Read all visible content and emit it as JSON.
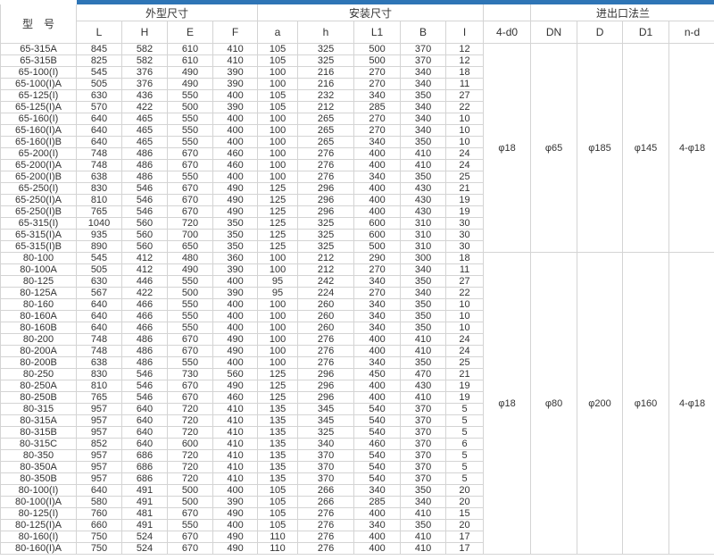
{
  "page": {
    "top_bar_color": "#2e75b6",
    "grid_color": "#d4d4d4"
  },
  "table": {
    "header": {
      "model_label": "型　号",
      "groups": [
        {
          "label": "外型尺寸",
          "span": 4
        },
        {
          "label": "安装尺寸",
          "span": 5
        },
        {
          "label": "",
          "span": 1
        },
        {
          "label": "进出口法兰",
          "span": 4
        }
      ],
      "columns": [
        "L",
        "H",
        "E",
        "F",
        "a",
        "h",
        "L1",
        "B",
        "I",
        "4-d0",
        "DN",
        "D",
        "D1",
        "n-d"
      ]
    },
    "groups": [
      {
        "flange": {
          "d0": "φ18",
          "DN": "φ65",
          "D": "φ185",
          "D1": "φ145",
          "nd": "4-φ18"
        },
        "rows": [
          {
            "model": "65-315A",
            "values": [
              845,
              582,
              610,
              410,
              105,
              325,
              500,
              370,
              12
            ]
          },
          {
            "model": "65-315B",
            "values": [
              825,
              582,
              610,
              410,
              105,
              325,
              500,
              370,
              12
            ]
          },
          {
            "model": "65-100(I)",
            "values": [
              545,
              376,
              490,
              390,
              100,
              216,
              270,
              340,
              18
            ]
          },
          {
            "model": "65-100(I)A",
            "values": [
              505,
              376,
              490,
              390,
              100,
              216,
              270,
              340,
              11
            ]
          },
          {
            "model": "65-125(I)",
            "values": [
              630,
              436,
              550,
              400,
              105,
              232,
              340,
              350,
              27
            ]
          },
          {
            "model": "65-125(I)A",
            "values": [
              570,
              422,
              500,
              390,
              105,
              212,
              285,
              340,
              22
            ]
          },
          {
            "model": "65-160(I)",
            "values": [
              640,
              465,
              550,
              400,
              100,
              265,
              270,
              340,
              10
            ]
          },
          {
            "model": "65-160(I)A",
            "values": [
              640,
              465,
              550,
              400,
              100,
              265,
              270,
              340,
              10
            ]
          },
          {
            "model": "65-160(I)B",
            "values": [
              640,
              465,
              550,
              400,
              100,
              265,
              340,
              350,
              10
            ]
          },
          {
            "model": "65-200(I)",
            "values": [
              748,
              486,
              670,
              460,
              100,
              276,
              400,
              410,
              24
            ]
          },
          {
            "model": "65-200(I)A",
            "values": [
              748,
              486,
              670,
              460,
              100,
              276,
              400,
              410,
              24
            ]
          },
          {
            "model": "65-200(I)B",
            "values": [
              638,
              486,
              550,
              400,
              100,
              276,
              340,
              350,
              25
            ]
          },
          {
            "model": "65-250(I)",
            "values": [
              830,
              546,
              670,
              490,
              125,
              296,
              400,
              430,
              21
            ]
          },
          {
            "model": "65-250(I)A",
            "values": [
              810,
              546,
              670,
              490,
              125,
              296,
              400,
              430,
              19
            ]
          },
          {
            "model": "65-250(I)B",
            "values": [
              765,
              546,
              670,
              490,
              125,
              296,
              400,
              430,
              19
            ]
          },
          {
            "model": "65-315(I)",
            "values": [
              1040,
              560,
              720,
              350,
              125,
              325,
              600,
              310,
              30
            ]
          },
          {
            "model": "65-315(I)A",
            "values": [
              935,
              560,
              700,
              350,
              125,
              325,
              600,
              310,
              30
            ]
          },
          {
            "model": "65-315(I)B",
            "values": [
              890,
              560,
              650,
              350,
              125,
              325,
              500,
              310,
              30
            ]
          }
        ]
      },
      {
        "flange": {
          "d0": "φ18",
          "DN": "φ80",
          "D": "φ200",
          "D1": "φ160",
          "nd": "4-φ18"
        },
        "rows": [
          {
            "model": "80-100",
            "values": [
              545,
              412,
              480,
              360,
              100,
              212,
              290,
              300,
              18
            ]
          },
          {
            "model": "80-100A",
            "values": [
              505,
              412,
              490,
              390,
              100,
              212,
              270,
              340,
              11
            ]
          },
          {
            "model": "80-125",
            "values": [
              630,
              446,
              550,
              400,
              95,
              242,
              340,
              350,
              27
            ]
          },
          {
            "model": "80-125A",
            "values": [
              567,
              422,
              500,
              390,
              95,
              224,
              270,
              340,
              22
            ]
          },
          {
            "model": "80-160",
            "values": [
              640,
              466,
              550,
              400,
              100,
              260,
              340,
              350,
              10
            ]
          },
          {
            "model": "80-160A",
            "values": [
              640,
              466,
              550,
              400,
              100,
              260,
              340,
              350,
              10
            ]
          },
          {
            "model": "80-160B",
            "values": [
              640,
              466,
              550,
              400,
              100,
              260,
              340,
              350,
              10
            ]
          },
          {
            "model": "80-200",
            "values": [
              748,
              486,
              670,
              490,
              100,
              276,
              400,
              410,
              24
            ]
          },
          {
            "model": "80-200A",
            "values": [
              748,
              486,
              670,
              490,
              100,
              276,
              400,
              410,
              24
            ]
          },
          {
            "model": "80-200B",
            "values": [
              638,
              486,
              550,
              400,
              100,
              276,
              340,
              350,
              25
            ]
          },
          {
            "model": "80-250",
            "values": [
              830,
              546,
              730,
              560,
              125,
              296,
              450,
              470,
              21
            ]
          },
          {
            "model": "80-250A",
            "values": [
              810,
              546,
              670,
              490,
              125,
              296,
              400,
              430,
              19
            ]
          },
          {
            "model": "80-250B",
            "values": [
              765,
              546,
              670,
              460,
              125,
              296,
              400,
              410,
              19
            ]
          },
          {
            "model": "80-315",
            "values": [
              957,
              640,
              720,
              410,
              135,
              345,
              540,
              370,
              5
            ]
          },
          {
            "model": "80-315A",
            "values": [
              957,
              640,
              720,
              410,
              135,
              345,
              540,
              370,
              5
            ]
          },
          {
            "model": "80-315B",
            "values": [
              957,
              640,
              720,
              410,
              135,
              325,
              540,
              370,
              5
            ]
          },
          {
            "model": "80-315C",
            "values": [
              852,
              640,
              600,
              410,
              135,
              340,
              460,
              370,
              6
            ]
          },
          {
            "model": "80-350",
            "values": [
              957,
              686,
              720,
              410,
              135,
              370,
              540,
              370,
              5
            ]
          },
          {
            "model": "80-350A",
            "values": [
              957,
              686,
              720,
              410,
              135,
              370,
              540,
              370,
              5
            ]
          },
          {
            "model": "80-350B",
            "values": [
              957,
              686,
              720,
              410,
              135,
              370,
              540,
              370,
              5
            ]
          },
          {
            "model": "80-100(I)",
            "values": [
              640,
              491,
              500,
              400,
              105,
              266,
              340,
              350,
              20
            ]
          },
          {
            "model": "80-100(I)A",
            "values": [
              580,
              491,
              500,
              390,
              105,
              266,
              285,
              340,
              20
            ]
          },
          {
            "model": "80-125(I)",
            "values": [
              760,
              481,
              670,
              490,
              105,
              276,
              400,
              410,
              15
            ]
          },
          {
            "model": "80-125(I)A",
            "values": [
              660,
              491,
              550,
              400,
              105,
              276,
              340,
              350,
              20
            ]
          },
          {
            "model": "80-160(I)",
            "values": [
              750,
              524,
              670,
              490,
              110,
              276,
              400,
              410,
              17
            ]
          },
          {
            "model": "80-160(I)A",
            "values": [
              750,
              524,
              670,
              490,
              110,
              276,
              400,
              410,
              17
            ]
          }
        ]
      }
    ]
  }
}
